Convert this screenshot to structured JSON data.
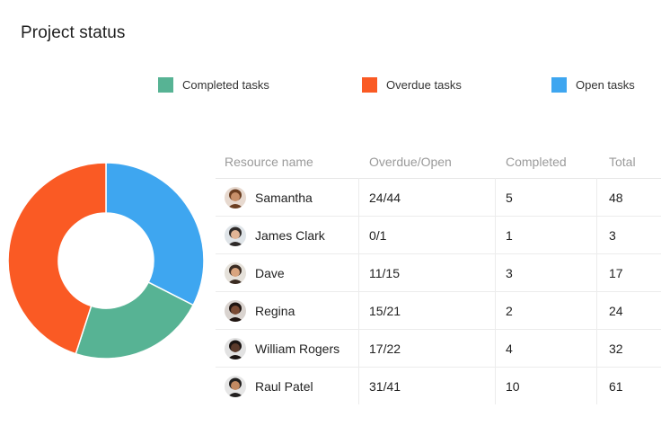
{
  "title": "Project status",
  "legend": [
    {
      "label": "Completed tasks",
      "color": "#57b394"
    },
    {
      "label": "Overdue tasks",
      "color": "#fa5a24"
    },
    {
      "label": "Open tasks",
      "color": "#3ea6f0"
    }
  ],
  "chart_data": {
    "type": "pie",
    "categories": [
      "Open tasks",
      "Completed tasks",
      "Overdue tasks"
    ],
    "values": [
      32.5,
      22.5,
      45
    ],
    "colors": [
      "#3ea6f0",
      "#57b394",
      "#fa5a24"
    ]
  },
  "table": {
    "headers": {
      "name": "Resource name",
      "overdue_open": "Overdue/Open",
      "completed": "Completed",
      "total": "Total"
    },
    "rows": [
      {
        "name": "Samantha",
        "overdue_open": "24/44",
        "completed": "5",
        "total": "48",
        "avatar": "samantha-avatar"
      },
      {
        "name": "James Clark",
        "overdue_open": "0/1",
        "completed": "1",
        "total": "3",
        "avatar": "james-clark-avatar"
      },
      {
        "name": "Dave",
        "overdue_open": "11/15",
        "completed": "3",
        "total": "17",
        "avatar": "dave-avatar"
      },
      {
        "name": "Regina",
        "overdue_open": "15/21",
        "completed": "2",
        "total": "24",
        "avatar": "regina-avatar"
      },
      {
        "name": "William Rogers",
        "overdue_open": "17/22",
        "completed": "4",
        "total": "32",
        "avatar": "william-rogers-avatar"
      },
      {
        "name": "Raul Patel",
        "overdue_open": "31/41",
        "completed": "10",
        "total": "61",
        "avatar": "raul-patel-avatar"
      }
    ]
  }
}
